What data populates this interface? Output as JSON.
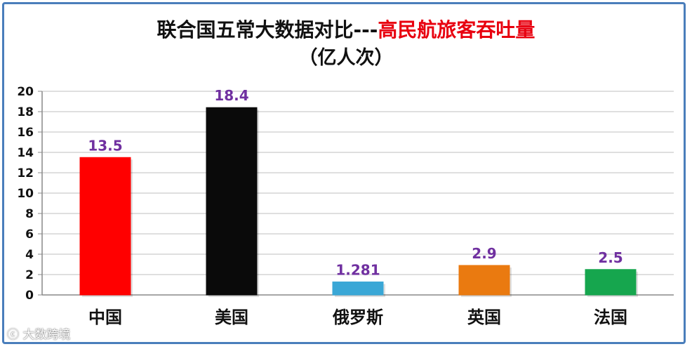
{
  "chart_data": {
    "type": "bar",
    "title_prefix": "联合国五常大数据对比---",
    "title_highlight": "高民航旅客吞吐量",
    "subtitle": "（亿人次）",
    "categories": [
      "中国",
      "美国",
      "俄罗斯",
      "英国",
      "法国"
    ],
    "values": [
      13.5,
      18.4,
      1.281,
      2.9,
      2.5
    ],
    "value_labels": [
      "13.5",
      "18.4",
      "1.281",
      "2.9",
      "2.5"
    ],
    "bar_colors": [
      "#ff0000",
      "#0a0a0a",
      "#3aa7d6",
      "#ea7a10",
      "#16a64e"
    ],
    "label_color": "#7030a0",
    "ylim": [
      0,
      20
    ],
    "yticks": [
      0,
      2,
      4,
      6,
      8,
      10,
      12,
      14,
      16,
      18,
      20
    ],
    "grid": true
  },
  "watermark": "大数跨境",
  "colors": {
    "frame": "#4a7ebb",
    "title_highlight": "#e8000f",
    "grid": "#bfbfbf"
  }
}
